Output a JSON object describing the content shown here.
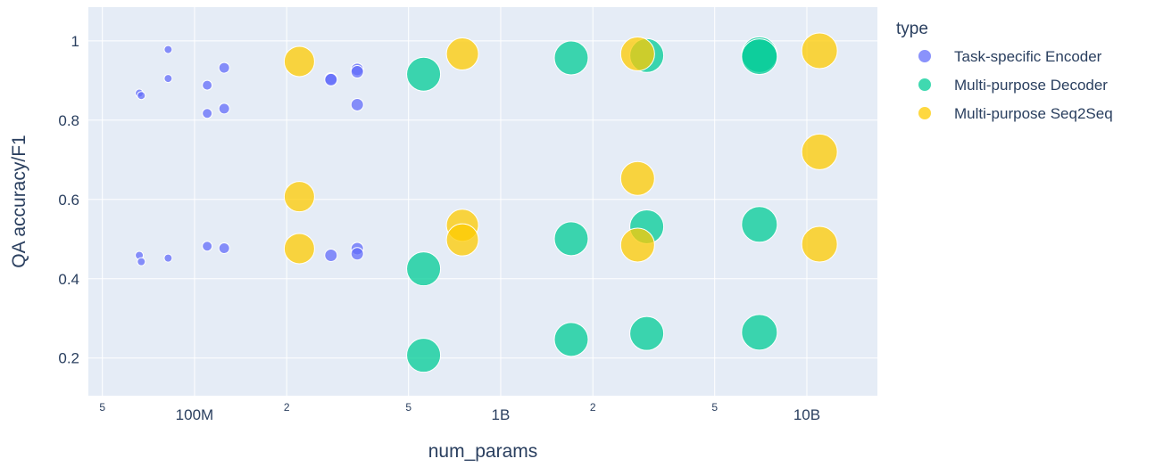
{
  "chart_data": {
    "type": "scatter",
    "xlabel": "num_params",
    "ylabel": "QA accuracy/F1",
    "x_scale": "log",
    "xlim": [
      45000000,
      17000000000
    ],
    "ylim": [
      0.105,
      1.085
    ],
    "x_ticks": [
      {
        "value": 50000000,
        "label": "5",
        "minor": true
      },
      {
        "value": 100000000,
        "label": "100M",
        "minor": false
      },
      {
        "value": 200000000,
        "label": "2",
        "minor": true
      },
      {
        "value": 500000000,
        "label": "5",
        "minor": true
      },
      {
        "value": 1000000000,
        "label": "1B",
        "minor": false
      },
      {
        "value": 2000000000,
        "label": "2",
        "minor": true
      },
      {
        "value": 5000000000,
        "label": "5",
        "minor": true
      },
      {
        "value": 10000000000,
        "label": "10B",
        "minor": false
      }
    ],
    "y_ticks": [
      {
        "value": 0.2,
        "label": "0.2"
      },
      {
        "value": 0.4,
        "label": "0.4"
      },
      {
        "value": 0.6,
        "label": "0.6"
      },
      {
        "value": 0.8,
        "label": "0.8"
      },
      {
        "value": 1.0,
        "label": "1"
      }
    ],
    "grid": true,
    "legend_title": "type",
    "legend_position": "right",
    "series": [
      {
        "name": "Task-specific Encoder",
        "color": "#636efa",
        "points": [
          {
            "x": 66000000,
            "y": 0.868
          },
          {
            "x": 67000000,
            "y": 0.862
          },
          {
            "x": 82000000,
            "y": 0.978
          },
          {
            "x": 82000000,
            "y": 0.905
          },
          {
            "x": 110000000,
            "y": 0.888
          },
          {
            "x": 110000000,
            "y": 0.817
          },
          {
            "x": 125000000,
            "y": 0.932
          },
          {
            "x": 125000000,
            "y": 0.829
          },
          {
            "x": 279000000,
            "y": 0.904
          },
          {
            "x": 279000000,
            "y": 0.902
          },
          {
            "x": 340000000,
            "y": 0.928
          },
          {
            "x": 340000000,
            "y": 0.922
          },
          {
            "x": 340000000,
            "y": 0.839
          },
          {
            "x": 66000000,
            "y": 0.459
          },
          {
            "x": 67000000,
            "y": 0.443
          },
          {
            "x": 82000000,
            "y": 0.452
          },
          {
            "x": 110000000,
            "y": 0.482
          },
          {
            "x": 125000000,
            "y": 0.477
          },
          {
            "x": 279000000,
            "y": 0.459
          },
          {
            "x": 340000000,
            "y": 0.476
          },
          {
            "x": 340000000,
            "y": 0.463
          }
        ],
        "sizes": [
          9,
          9,
          9,
          9,
          11,
          11,
          12,
          12,
          14,
          14,
          14,
          14,
          14,
          9,
          9,
          9,
          11,
          12,
          14,
          14,
          14
        ]
      },
      {
        "name": "Multi-purpose Decoder",
        "color": "#00cc96",
        "points": [
          {
            "x": 560000000,
            "y": 0.916
          },
          {
            "x": 1700000000,
            "y": 0.957
          },
          {
            "x": 3000000000,
            "y": 0.963
          },
          {
            "x": 7000000000,
            "y": 0.965
          },
          {
            "x": 7000000000,
            "y": 0.96
          },
          {
            "x": 1700000000,
            "y": 0.501
          },
          {
            "x": 3000000000,
            "y": 0.531
          },
          {
            "x": 7000000000,
            "y": 0.537
          },
          {
            "x": 560000000,
            "y": 0.425
          },
          {
            "x": 560000000,
            "y": 0.207
          },
          {
            "x": 1700000000,
            "y": 0.247
          },
          {
            "x": 3000000000,
            "y": 0.262
          },
          {
            "x": 7000000000,
            "y": 0.265
          }
        ],
        "sizes": [
          38,
          38,
          38,
          40,
          40,
          38,
          38,
          40,
          38,
          38,
          38,
          38,
          40
        ]
      },
      {
        "name": "Multi-purpose Seq2Seq",
        "color": "#fecb00",
        "points": [
          {
            "x": 220000000,
            "y": 0.948
          },
          {
            "x": 750000000,
            "y": 0.967
          },
          {
            "x": 2800000000,
            "y": 0.967
          },
          {
            "x": 11000000000,
            "y": 0.975
          },
          {
            "x": 11000000000,
            "y": 0.72
          },
          {
            "x": 2800000000,
            "y": 0.653
          },
          {
            "x": 220000000,
            "y": 0.607
          },
          {
            "x": 750000000,
            "y": 0.535
          },
          {
            "x": 750000000,
            "y": 0.498
          },
          {
            "x": 220000000,
            "y": 0.476
          },
          {
            "x": 2800000000,
            "y": 0.485
          },
          {
            "x": 11000000000,
            "y": 0.487
          }
        ],
        "sizes": [
          34,
          36,
          38,
          40,
          40,
          38,
          34,
          36,
          36,
          34,
          38,
          40
        ]
      }
    ]
  }
}
